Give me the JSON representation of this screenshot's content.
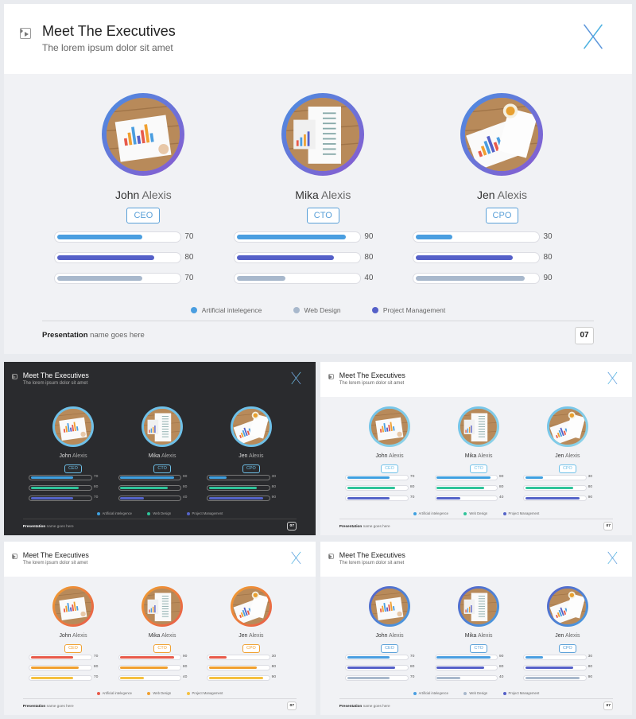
{
  "title": "Meet The Executives",
  "subtitle": "The lorem ipsum dolor sit amet",
  "footer_bold": "Presentation",
  "footer_rest": " name goes here",
  "page_number": "07",
  "legend": [
    "Artificial intelegence",
    "Web Design",
    "Project Management"
  ],
  "executives": [
    {
      "first": "John",
      "last": "Alexis",
      "role": "CEO",
      "values": [
        70,
        80,
        70
      ]
    },
    {
      "first": "Mika",
      "last": "Alexis",
      "role": "CTO",
      "values": [
        90,
        80,
        40
      ]
    },
    {
      "first": "Jen",
      "last": "Alexis",
      "role": "CPO",
      "values": [
        30,
        80,
        90
      ]
    }
  ],
  "themes": {
    "blue": {
      "c1": "#4a9ee0",
      "c2": "#5560c8",
      "c3": "#a8b8cc",
      "ring1": "#4a8ee0",
      "ring2": "#8a5ad0",
      "role": "#5aa0d8"
    },
    "dark": {
      "c1": "#3fa0e0",
      "c2": "#2fc49a",
      "c3": "#5564c8",
      "ring1": "#6ec0e8",
      "ring2": "#6ec0e8",
      "role": "#6ec0e8"
    },
    "green": {
      "c1": "#3fa0e0",
      "c2": "#2fc49a",
      "c3": "#5564c8",
      "ring1": "#6ec0e8",
      "ring2": "#8fd4e8",
      "role": "#6ec0e8"
    },
    "warm": {
      "c1": "#e85a4a",
      "c2": "#f0a030",
      "c3": "#f5c040",
      "ring1": "#f0a030",
      "ring2": "#e85a4a",
      "role": "#f0a030"
    },
    "navy": {
      "c1": "#4a9ee0",
      "c2": "#5560c8",
      "c3": "#a8b8cc",
      "ring1": "#5560c8",
      "ring2": "#4a9ee0",
      "role": "#5aa0d8"
    }
  }
}
